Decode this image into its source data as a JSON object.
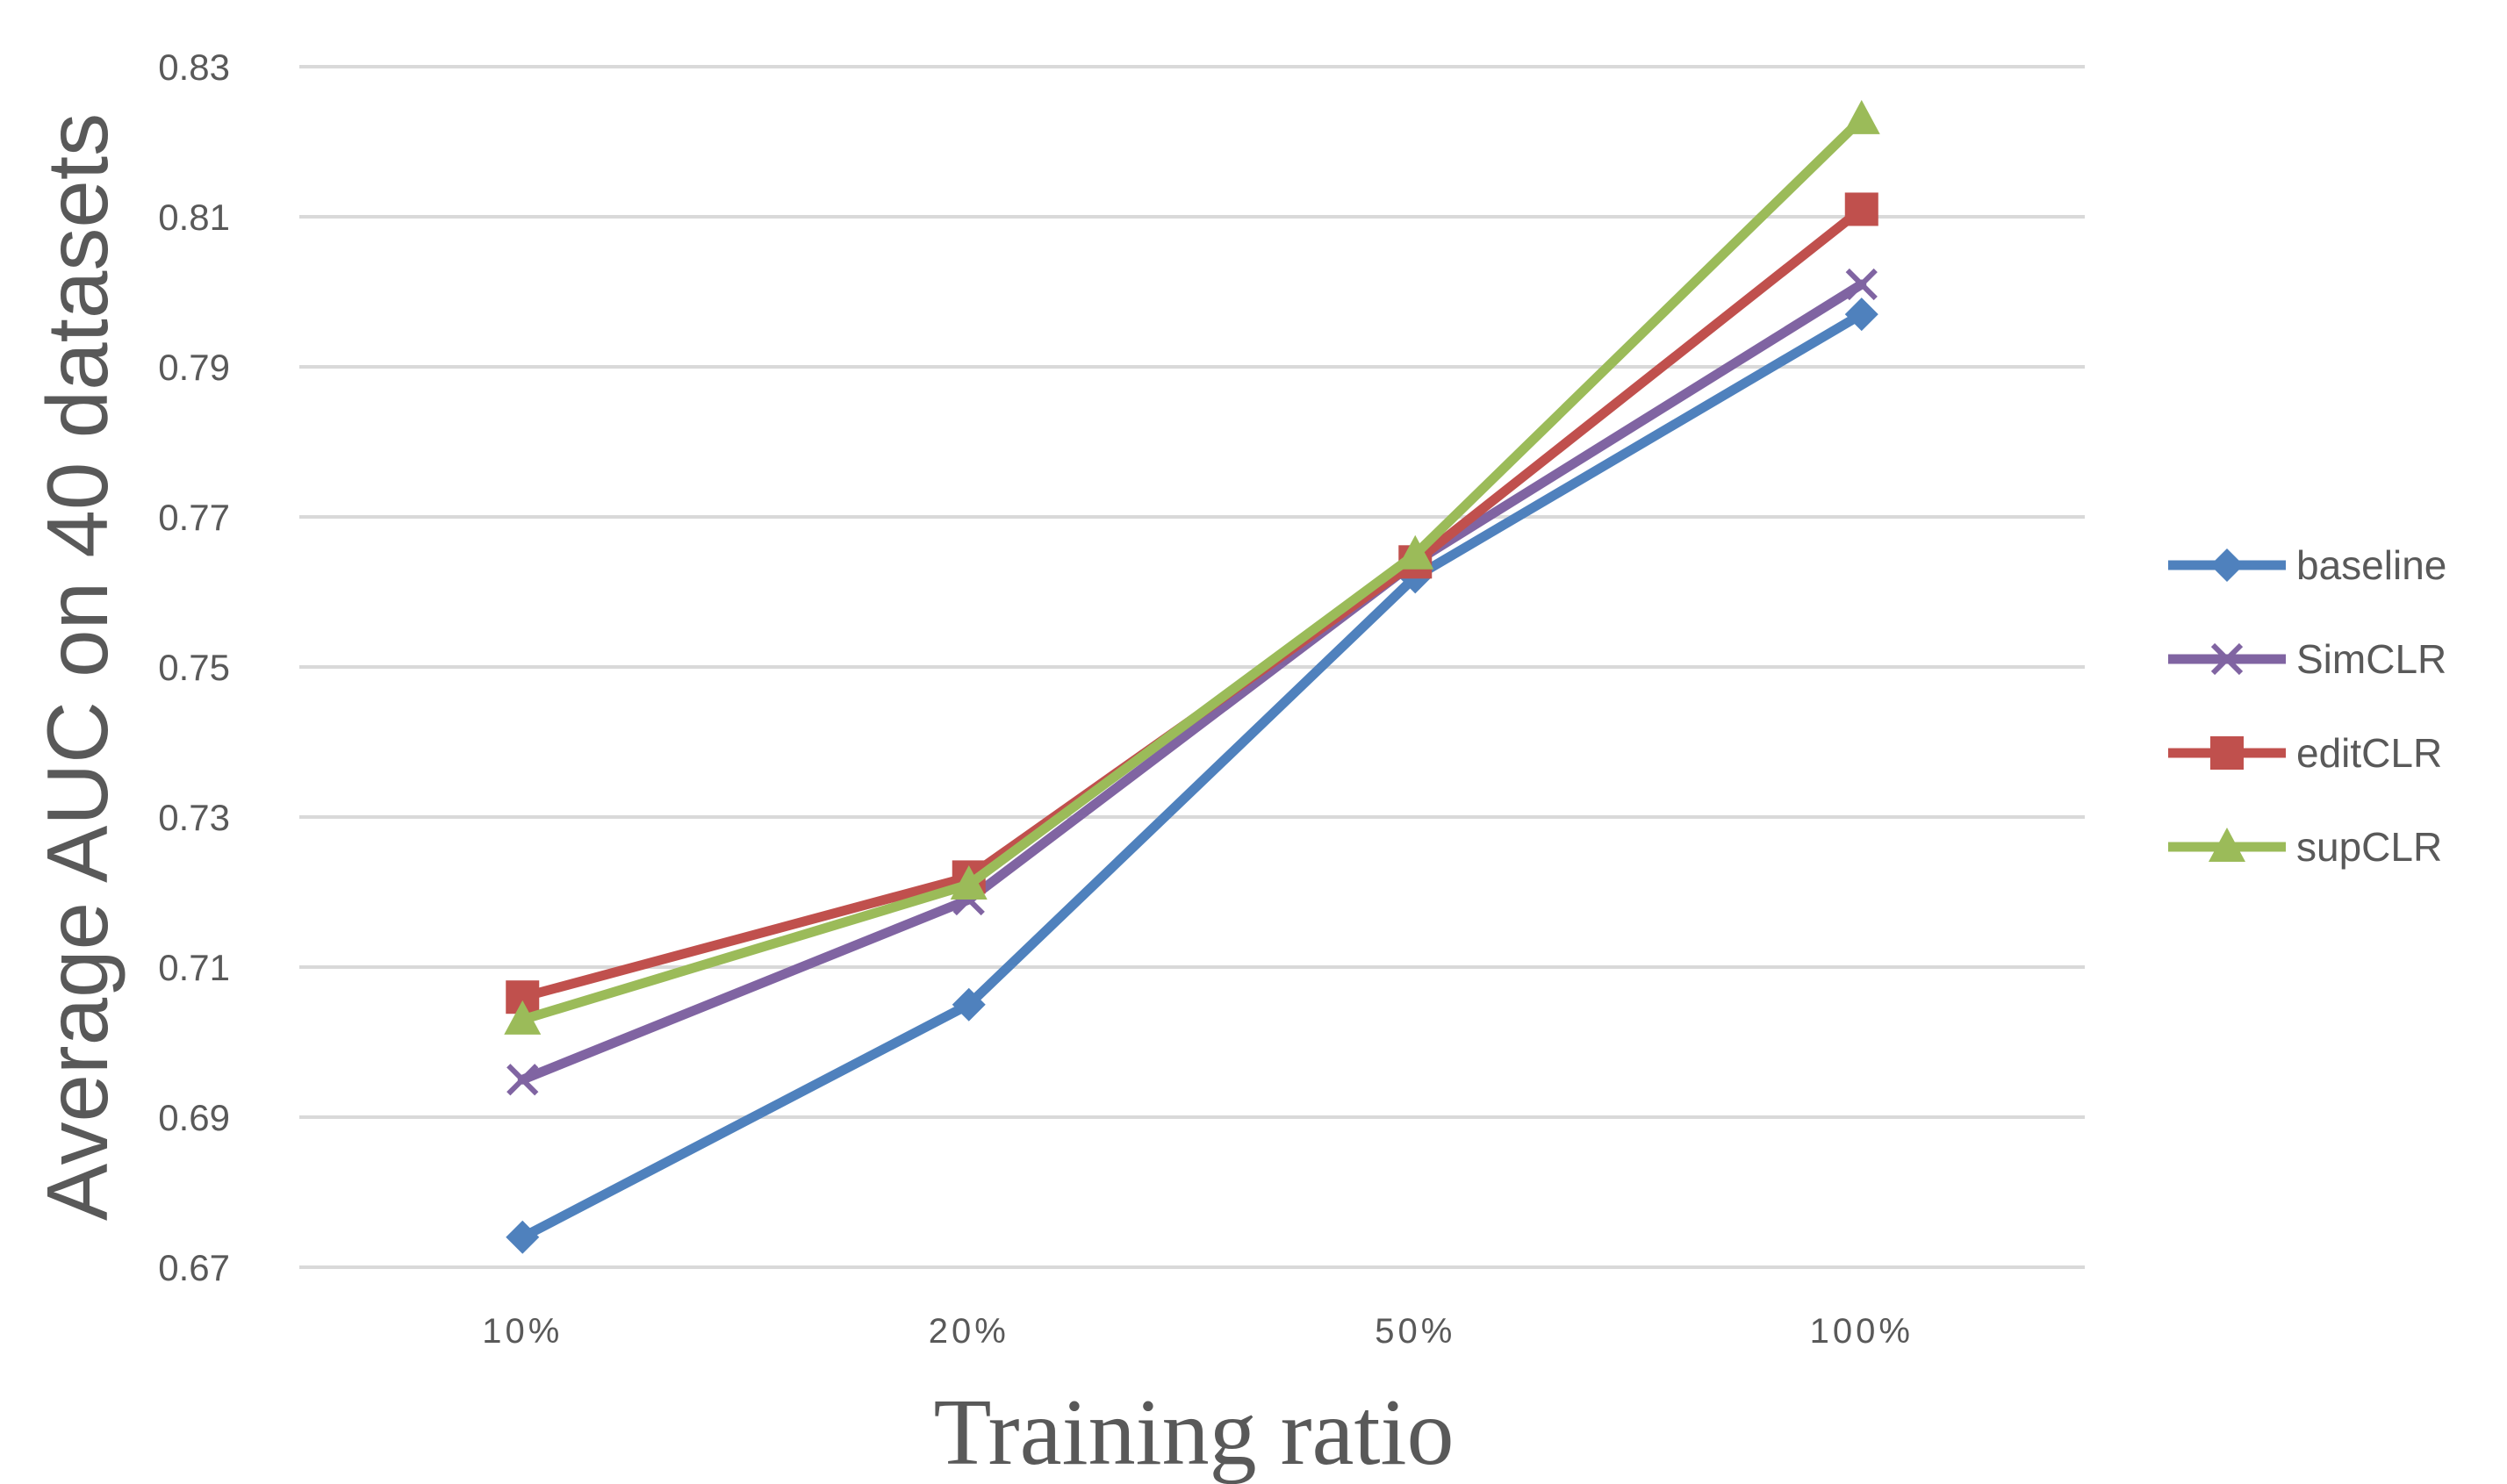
{
  "chart_data": {
    "type": "line",
    "title": "",
    "xlabel": "Training ratio",
    "ylabel": "Average AUC on 40 datasets",
    "categories": [
      "10%",
      "20%",
      "50%",
      "100%"
    ],
    "ylim": [
      0.67,
      0.83
    ],
    "yticks": [
      0.67,
      0.69,
      0.71,
      0.73,
      0.75,
      0.77,
      0.79,
      0.81,
      0.83
    ],
    "ytick_labels": [
      "0.67",
      "0.69",
      "0.71",
      "0.73",
      "0.75",
      "0.77",
      "0.79",
      "0.81",
      "0.83"
    ],
    "grid": true,
    "legend_position": "right",
    "series": [
      {
        "name": "baseline",
        "color": "#4F81BD",
        "marker": "diamond",
        "values": [
          0.674,
          0.705,
          0.762,
          0.797
        ]
      },
      {
        "name": "SimCLR",
        "color": "#8064A2",
        "marker": "x",
        "values": [
          0.695,
          0.719,
          0.764,
          0.801
        ]
      },
      {
        "name": "editCLR",
        "color": "#C0504D",
        "marker": "square",
        "values": [
          0.706,
          0.722,
          0.764,
          0.811
        ]
      },
      {
        "name": "supCLR",
        "color": "#9BBB59",
        "marker": "triangle",
        "values": [
          0.703,
          0.721,
          0.765,
          0.823
        ]
      }
    ]
  }
}
